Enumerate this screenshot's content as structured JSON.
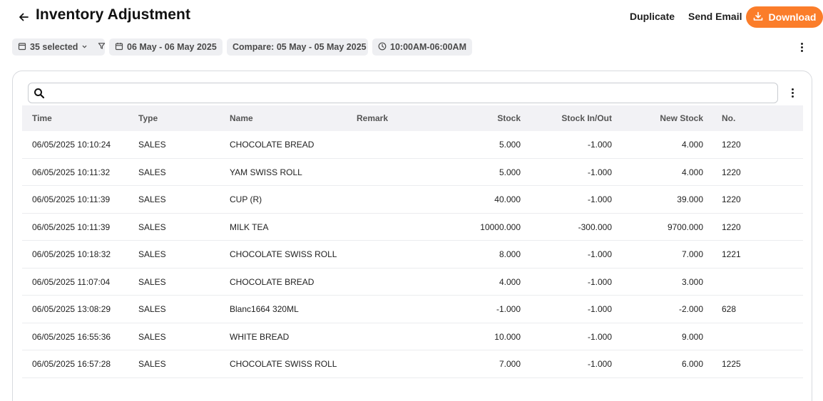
{
  "header": {
    "title": "Inventory Adjustment",
    "duplicate_label": "Duplicate",
    "send_email_label": "Send Email",
    "download_label": "Download"
  },
  "filters": {
    "selected_label": "35 selected",
    "date_range": "06 May - 06 May 2025",
    "compare_range": "Compare: 05 May - 05 May 2025",
    "time_range": "10:00AM-06:00AM"
  },
  "search": {
    "placeholder": ""
  },
  "colors": {
    "accent": "#fb7d2a"
  },
  "table": {
    "columns": [
      "Time",
      "Type",
      "Name",
      "Remark",
      "Stock",
      "Stock In/Out",
      "New Stock",
      "No."
    ],
    "rows": [
      {
        "time": "06/05/2025 10:10:24",
        "type": "SALES",
        "name": "CHOCOLATE BREAD",
        "remark": "",
        "stock": "5.000",
        "inout": "-1.000",
        "new_stock": "4.000",
        "no": "1220"
      },
      {
        "time": "06/05/2025 10:11:32",
        "type": "SALES",
        "name": "YAM SWISS ROLL",
        "remark": "",
        "stock": "5.000",
        "inout": "-1.000",
        "new_stock": "4.000",
        "no": "1220"
      },
      {
        "time": "06/05/2025 10:11:39",
        "type": "SALES",
        "name": "CUP (R)",
        "remark": "",
        "stock": "40.000",
        "inout": "-1.000",
        "new_stock": "39.000",
        "no": "1220"
      },
      {
        "time": "06/05/2025 10:11:39",
        "type": "SALES",
        "name": "MILK TEA",
        "remark": "",
        "stock": "10000.000",
        "inout": "-300.000",
        "new_stock": "9700.000",
        "no": "1220"
      },
      {
        "time": "06/05/2025 10:18:32",
        "type": "SALES",
        "name": "CHOCOLATE SWISS ROLL",
        "remark": "",
        "stock": "8.000",
        "inout": "-1.000",
        "new_stock": "7.000",
        "no": "1221"
      },
      {
        "time": "06/05/2025 11:07:04",
        "type": "SALES",
        "name": "CHOCOLATE BREAD",
        "remark": "",
        "stock": "4.000",
        "inout": "-1.000",
        "new_stock": "3.000",
        "no": ""
      },
      {
        "time": "06/05/2025 13:08:29",
        "type": "SALES",
        "name": "Blanc1664 320ML",
        "remark": "",
        "stock": "-1.000",
        "inout": "-1.000",
        "new_stock": "-2.000",
        "no": "628"
      },
      {
        "time": "06/05/2025 16:55:36",
        "type": "SALES",
        "name": "WHITE BREAD",
        "remark": "",
        "stock": "10.000",
        "inout": "-1.000",
        "new_stock": "9.000",
        "no": ""
      },
      {
        "time": "06/05/2025 16:57:28",
        "type": "SALES",
        "name": "CHOCOLATE SWISS ROLL",
        "remark": "",
        "stock": "7.000",
        "inout": "-1.000",
        "new_stock": "6.000",
        "no": "1225"
      }
    ]
  }
}
